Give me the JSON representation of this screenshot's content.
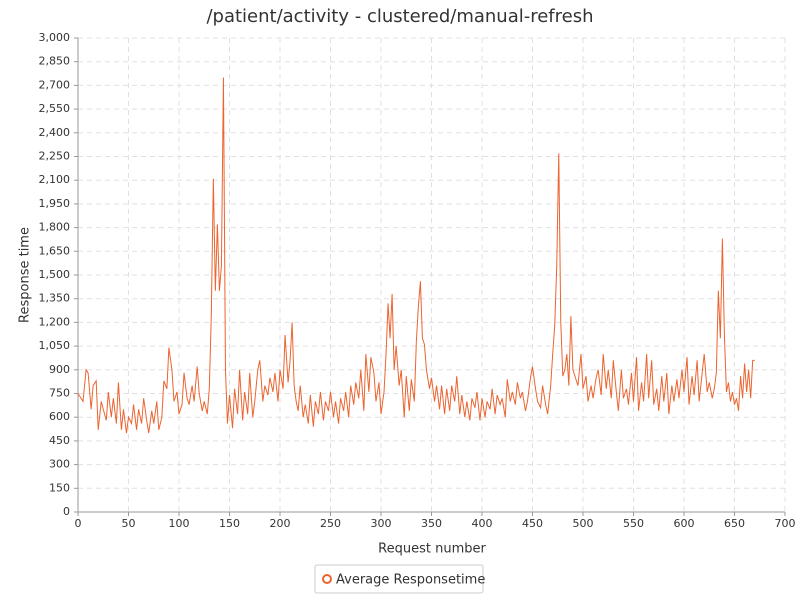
{
  "chart_data": {
    "type": "line",
    "title": "/patient/activity - clustered/manual-refresh",
    "x_label": "Request number",
    "y_label": "Response time",
    "grid": true,
    "xlim": [
      0,
      700
    ],
    "xticks": [
      0,
      50,
      100,
      150,
      200,
      250,
      300,
      350,
      400,
      450,
      500,
      550,
      600,
      650,
      700
    ],
    "ylim": [
      0,
      3000
    ],
    "yticks": [
      0,
      150,
      300,
      450,
      600,
      750,
      900,
      {
        "value": 1050,
        "label": "1,050"
      },
      {
        "value": 1200,
        "label": "1,200"
      },
      {
        "value": 1350,
        "label": "1,350"
      },
      {
        "value": 1500,
        "label": "1,500"
      },
      {
        "value": 1650,
        "label": "1,650"
      },
      {
        "value": 1800,
        "label": "1,800"
      },
      {
        "value": 1950,
        "label": "1,950"
      },
      {
        "value": 2100,
        "label": "2,100"
      },
      {
        "value": 2250,
        "label": "2,250"
      },
      {
        "value": 2400,
        "label": "2,400"
      },
      {
        "value": 2550,
        "label": "2,550"
      },
      {
        "value": 2700,
        "label": "2,700"
      },
      {
        "value": 2850,
        "label": "2,850"
      },
      {
        "value": 3000,
        "label": "3,000"
      }
    ],
    "x": [
      0,
      3,
      5,
      8,
      10,
      13,
      15,
      18,
      20,
      23,
      25,
      28,
      30,
      33,
      35,
      38,
      40,
      43,
      45,
      48,
      50,
      53,
      55,
      58,
      60,
      63,
      65,
      68,
      70,
      73,
      75,
      78,
      80,
      83,
      85,
      88,
      90,
      93,
      95,
      98,
      100,
      103,
      105,
      108,
      110,
      113,
      115,
      118,
      120,
      123,
      125,
      128,
      130,
      132,
      134,
      136,
      138,
      140,
      142,
      144,
      146,
      148,
      150,
      153,
      155,
      158,
      160,
      163,
      165,
      168,
      170,
      173,
      175,
      178,
      180,
      183,
      185,
      188,
      190,
      193,
      195,
      198,
      200,
      203,
      205,
      208,
      210,
      212,
      214,
      216,
      218,
      220,
      223,
      225,
      228,
      230,
      233,
      235,
      238,
      240,
      243,
      245,
      248,
      250,
      253,
      255,
      258,
      260,
      263,
      265,
      268,
      270,
      273,
      275,
      278,
      280,
      283,
      285,
      288,
      290,
      293,
      295,
      298,
      300,
      303,
      305,
      307,
      309,
      311,
      313,
      315,
      318,
      320,
      323,
      325,
      328,
      330,
      333,
      335,
      337,
      339,
      341,
      343,
      345,
      348,
      350,
      353,
      355,
      358,
      360,
      363,
      365,
      368,
      370,
      373,
      375,
      378,
      380,
      383,
      385,
      388,
      390,
      393,
      395,
      398,
      400,
      403,
      405,
      408,
      410,
      413,
      415,
      418,
      420,
      423,
      425,
      428,
      430,
      433,
      435,
      438,
      440,
      443,
      445,
      448,
      450,
      453,
      455,
      458,
      460,
      463,
      465,
      468,
      470,
      472,
      474,
      476,
      478,
      480,
      482,
      484,
      486,
      488,
      490,
      493,
      495,
      498,
      500,
      503,
      505,
      508,
      510,
      513,
      515,
      518,
      520,
      523,
      525,
      528,
      530,
      533,
      535,
      538,
      540,
      543,
      545,
      548,
      550,
      553,
      555,
      558,
      560,
      563,
      565,
      568,
      570,
      573,
      575,
      578,
      580,
      583,
      585,
      588,
      590,
      593,
      595,
      598,
      600,
      603,
      605,
      608,
      610,
      613,
      615,
      618,
      620,
      623,
      625,
      628,
      630,
      632,
      634,
      636,
      638,
      640,
      642,
      644,
      646,
      648,
      650,
      652,
      654,
      656,
      658,
      660,
      662,
      664,
      666,
      668,
      670
    ],
    "series": [
      {
        "name": "Average Responsetime",
        "color": "#ec6430",
        "values": [
          750,
          720,
          700,
          900,
          880,
          650,
          800,
          830,
          520,
          700,
          650,
          580,
          760,
          600,
          720,
          560,
          820,
          520,
          650,
          500,
          600,
          560,
          680,
          520,
          650,
          560,
          720,
          580,
          500,
          640,
          560,
          700,
          520,
          600,
          830,
          780,
          1040,
          900,
          700,
          760,
          620,
          680,
          880,
          720,
          680,
          800,
          700,
          920,
          750,
          640,
          700,
          620,
          780,
          1250,
          2110,
          1400,
          1820,
          1400,
          1560,
          2750,
          900,
          560,
          740,
          530,
          780,
          620,
          900,
          580,
          760,
          620,
          880,
          600,
          700,
          900,
          960,
          700,
          800,
          740,
          850,
          760,
          880,
          700,
          900,
          780,
          1120,
          820,
          960,
          1200,
          800,
          700,
          640,
          800,
          600,
          680,
          560,
          740,
          540,
          700,
          620,
          760,
          580,
          700,
          640,
          760,
          600,
          700,
          560,
          720,
          640,
          760,
          600,
          800,
          680,
          820,
          720,
          900,
          640,
          1000,
          760,
          980,
          880,
          700,
          820,
          620,
          760,
          1000,
          1320,
          1100,
          1380,
          900,
          1050,
          800,
          900,
          600,
          860,
          640,
          840,
          700,
          1080,
          1300,
          1460,
          1100,
          1060,
          900,
          780,
          850,
          700,
          800,
          650,
          800,
          620,
          780,
          640,
          800,
          700,
          860,
          620,
          740,
          600,
          700,
          580,
          720,
          660,
          760,
          580,
          720,
          600,
          700,
          650,
          780,
          620,
          740,
          680,
          720,
          600,
          840,
          700,
          760,
          680,
          820,
          720,
          760,
          640,
          700,
          850,
          920,
          780,
          700,
          660,
          800,
          680,
          620,
          800,
          1000,
          1180,
          1560,
          2270,
          1200,
          860,
          900,
          1000,
          800,
          1240,
          900,
          840,
          800,
          1000,
          780,
          860,
          700,
          800,
          720,
          850,
          900,
          740,
          1000,
          780,
          900,
          720,
          960,
          760,
          640,
          900,
          720,
          780,
          680,
          880,
          700,
          980,
          640,
          820,
          700,
          1000,
          720,
          960,
          680,
          780,
          640,
          860,
          700,
          880,
          620,
          800,
          700,
          840,
          720,
          900,
          760,
          980,
          680,
          860,
          740,
          960,
          700,
          880,
          1000,
          760,
          820,
          720,
          780,
          880,
          1400,
          1100,
          1730,
          1120,
          760,
          820,
          700,
          760,
          680,
          720,
          640,
          860,
          720,
          940,
          760,
          900,
          720,
          960,
          960
        ]
      }
    ]
  }
}
